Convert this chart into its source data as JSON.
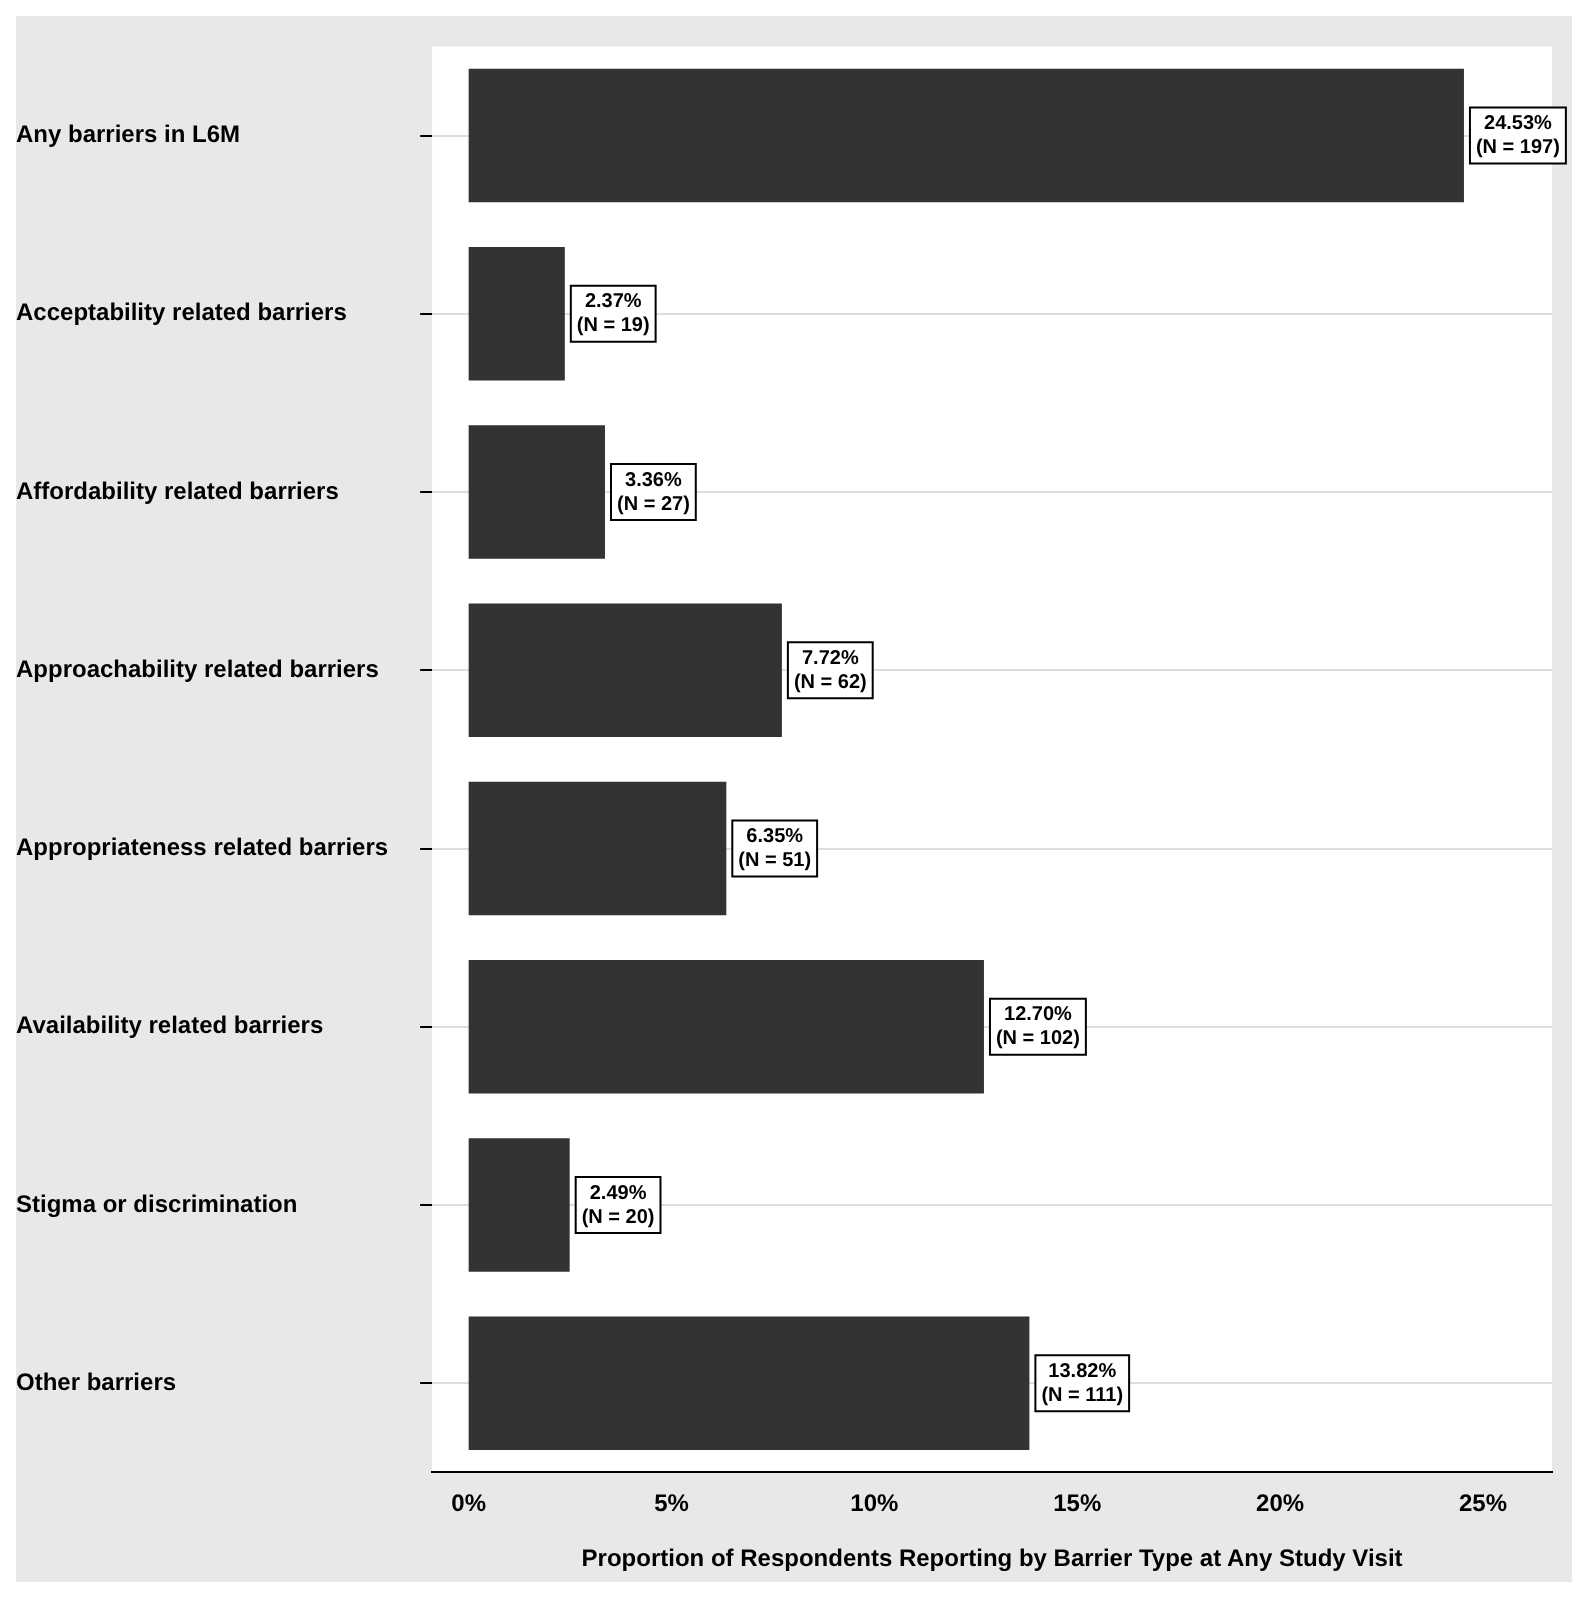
{
  "chart_data": {
    "type": "bar",
    "orientation": "horizontal",
    "xlabel": "Proportion of Respondents Reporting by Barrier Type at Any Study Visit",
    "categories": [
      "Any barriers in L6M",
      "Acceptability related barriers",
      "Affordability related barriers",
      "Approachability related barriers",
      "Appropriateness related barriers",
      "Availability related barriers",
      "Stigma or discrimination",
      "Other barriers"
    ],
    "values": [
      24.53,
      2.37,
      3.36,
      7.72,
      6.35,
      12.7,
      2.49,
      13.82
    ],
    "value_labels": [
      "24.53%\n(N = 197)",
      "2.37%\n(N = 19)",
      "3.36%\n(N = 27)",
      "7.72%\n(N = 62)",
      "6.35%\n(N = 51)",
      "12.70%\n(N = 102)",
      "2.49%\n(N = 20)",
      "13.82%\n(N = 111)"
    ],
    "color": "#333333",
    "xlim": [
      -0.9,
      26.7
    ],
    "xticks": [
      {
        "value": 0,
        "label": "0%"
      },
      {
        "value": 5,
        "label": "5%"
      },
      {
        "value": 10,
        "label": "10%"
      },
      {
        "value": 15,
        "label": "15%"
      },
      {
        "value": 20,
        "label": "20%"
      },
      {
        "value": 25,
        "label": "25%"
      }
    ],
    "grid": "y",
    "legend": false
  }
}
